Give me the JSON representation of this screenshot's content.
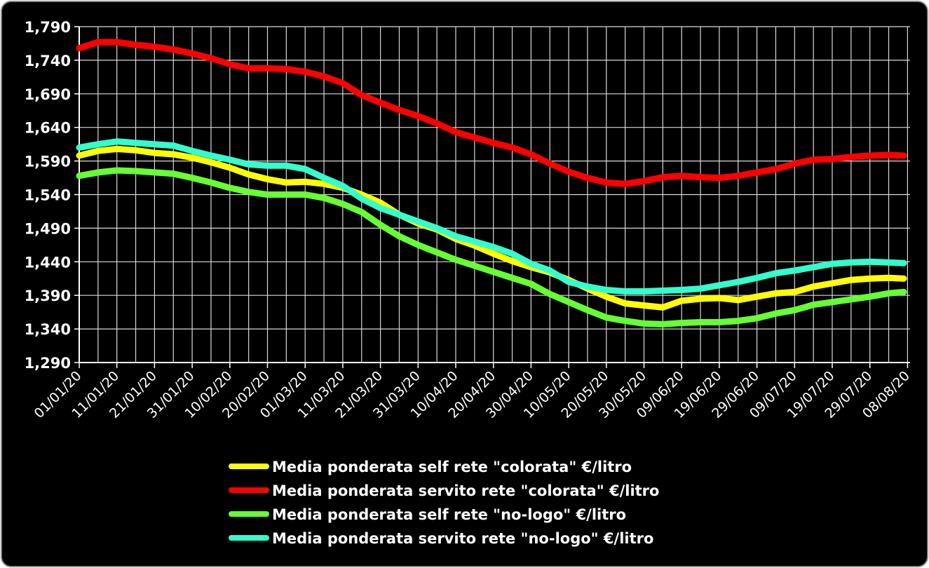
{
  "chart_data": {
    "type": "line",
    "title": "",
    "xlabel": "",
    "ylabel": "",
    "ylim": [
      1.29,
      1.79
    ],
    "y_ticks": [
      "1,290",
      "1,340",
      "1,390",
      "1,440",
      "1,490",
      "1,540",
      "1,590",
      "1,640",
      "1,690",
      "1,740",
      "1,790"
    ],
    "y_tick_values": [
      1.29,
      1.34,
      1.39,
      1.44,
      1.49,
      1.54,
      1.59,
      1.64,
      1.69,
      1.74,
      1.79
    ],
    "x_ticks": [
      "01/01/20",
      "11/01/20",
      "21/01/20",
      "31/01/20",
      "10/02/20",
      "20/02/20",
      "01/03/20",
      "11/03/20",
      "21/03/20",
      "31/03/20",
      "10/04/20",
      "20/04/20",
      "30/04/20",
      "10/05/20",
      "20/05/20",
      "30/05/20",
      "09/06/20",
      "19/06/20",
      "29/06/20",
      "09/07/20",
      "19/07/20",
      "29/07/20",
      "08/08/20"
    ],
    "grid": true,
    "legend_position": "bottom",
    "x_day_range": [
      0,
      220
    ],
    "series": [
      {
        "name": "Media ponderata self rete \"colorata\" €/litro",
        "color": "#ffff00",
        "x": [
          0,
          5,
          10,
          15,
          20,
          25,
          30,
          35,
          40,
          45,
          50,
          55,
          60,
          65,
          70,
          75,
          80,
          85,
          90,
          95,
          100,
          105,
          110,
          115,
          120,
          125,
          130,
          135,
          140,
          145,
          150,
          155,
          160,
          165,
          170,
          175,
          180,
          185,
          190,
          195,
          200,
          205,
          210,
          215,
          219
        ],
        "values": [
          1.598,
          1.605,
          1.608,
          1.606,
          1.602,
          1.6,
          1.595,
          1.588,
          1.58,
          1.57,
          1.563,
          1.558,
          1.559,
          1.556,
          1.55,
          1.54,
          1.528,
          1.51,
          1.497,
          1.488,
          1.474,
          1.464,
          1.452,
          1.441,
          1.432,
          1.424,
          1.413,
          1.4,
          1.388,
          1.378,
          1.375,
          1.372,
          1.382,
          1.385,
          1.386,
          1.383,
          1.388,
          1.393,
          1.395,
          1.403,
          1.408,
          1.413,
          1.415,
          1.416,
          1.415
        ]
      },
      {
        "name": "Media ponderata servito rete \"colorata\" €/litro",
        "color": "#ff0000",
        "x": [
          0,
          5,
          10,
          15,
          20,
          25,
          30,
          35,
          40,
          45,
          50,
          55,
          60,
          65,
          70,
          75,
          80,
          85,
          90,
          95,
          100,
          105,
          110,
          115,
          120,
          125,
          130,
          135,
          140,
          145,
          150,
          155,
          160,
          165,
          170,
          175,
          180,
          185,
          190,
          195,
          200,
          205,
          210,
          215,
          219
        ],
        "values": [
          1.758,
          1.767,
          1.767,
          1.763,
          1.76,
          1.756,
          1.75,
          1.743,
          1.734,
          1.728,
          1.728,
          1.727,
          1.723,
          1.716,
          1.706,
          1.688,
          1.677,
          1.666,
          1.657,
          1.646,
          1.633,
          1.625,
          1.617,
          1.61,
          1.6,
          1.586,
          1.574,
          1.565,
          1.558,
          1.556,
          1.56,
          1.566,
          1.568,
          1.566,
          1.565,
          1.568,
          1.573,
          1.578,
          1.586,
          1.592,
          1.593,
          1.596,
          1.598,
          1.599,
          1.598
        ]
      },
      {
        "name": "Media ponderata self rete \"no-logo\" €/litro",
        "color": "#66ff33",
        "x": [
          0,
          5,
          10,
          15,
          20,
          25,
          30,
          35,
          40,
          45,
          50,
          55,
          60,
          65,
          70,
          75,
          80,
          85,
          90,
          95,
          100,
          105,
          110,
          115,
          120,
          125,
          130,
          135,
          140,
          145,
          150,
          155,
          160,
          165,
          170,
          175,
          180,
          185,
          190,
          195,
          200,
          205,
          210,
          215,
          219
        ],
        "values": [
          1.568,
          1.573,
          1.576,
          1.575,
          1.573,
          1.571,
          1.565,
          1.558,
          1.55,
          1.544,
          1.54,
          1.54,
          1.54,
          1.535,
          1.526,
          1.514,
          1.495,
          1.478,
          1.465,
          1.454,
          1.443,
          1.434,
          1.425,
          1.416,
          1.407,
          1.392,
          1.38,
          1.368,
          1.357,
          1.352,
          1.348,
          1.347,
          1.349,
          1.35,
          1.35,
          1.352,
          1.356,
          1.363,
          1.368,
          1.376,
          1.38,
          1.384,
          1.388,
          1.393,
          1.395
        ]
      },
      {
        "name": "Media ponderata servito rete \"no-logo\" €/litro",
        "color": "#33ffcc",
        "x": [
          0,
          5,
          10,
          15,
          20,
          25,
          30,
          35,
          40,
          45,
          50,
          55,
          60,
          65,
          70,
          75,
          80,
          85,
          90,
          95,
          100,
          105,
          110,
          115,
          120,
          125,
          130,
          135,
          140,
          145,
          150,
          155,
          160,
          165,
          170,
          175,
          180,
          185,
          190,
          195,
          200,
          205,
          210,
          215,
          219
        ],
        "values": [
          1.61,
          1.615,
          1.619,
          1.617,
          1.615,
          1.613,
          1.605,
          1.598,
          1.592,
          1.585,
          1.583,
          1.583,
          1.578,
          1.565,
          1.553,
          1.534,
          1.52,
          1.51,
          1.5,
          1.49,
          1.478,
          1.47,
          1.462,
          1.452,
          1.437,
          1.427,
          1.41,
          1.403,
          1.398,
          1.396,
          1.396,
          1.397,
          1.398,
          1.4,
          1.405,
          1.41,
          1.416,
          1.423,
          1.427,
          1.432,
          1.437,
          1.439,
          1.44,
          1.439,
          1.438
        ]
      }
    ]
  }
}
